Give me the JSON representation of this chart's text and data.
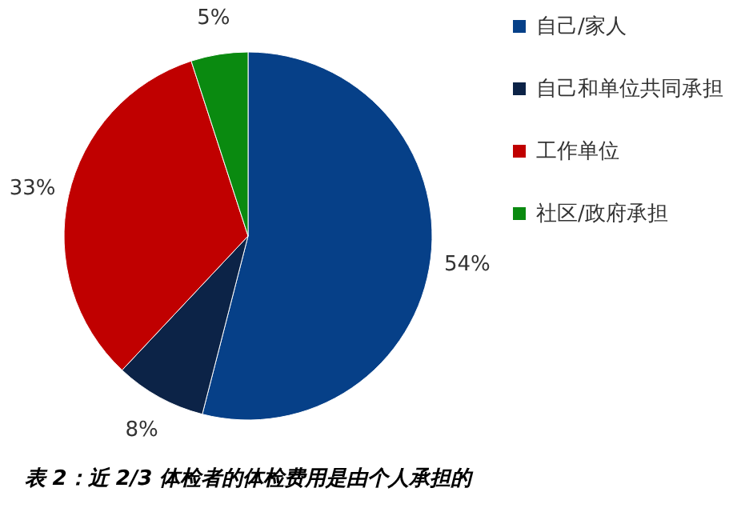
{
  "chart_data": {
    "type": "pie",
    "categories": [
      "自己/家人",
      "自己和单位共同承担",
      "工作单位",
      "社区/政府承担"
    ],
    "values": [
      54,
      8,
      33,
      5
    ],
    "colors": [
      "#064088",
      "#0c2347",
      "#c00000",
      "#0a8a10"
    ],
    "value_labels": [
      "54%",
      "8%",
      "33%",
      "5%"
    ],
    "legend": "right",
    "annotations": [
      "表 2：近 2/3 体检者的体检费用是由个人承担的"
    ]
  }
}
